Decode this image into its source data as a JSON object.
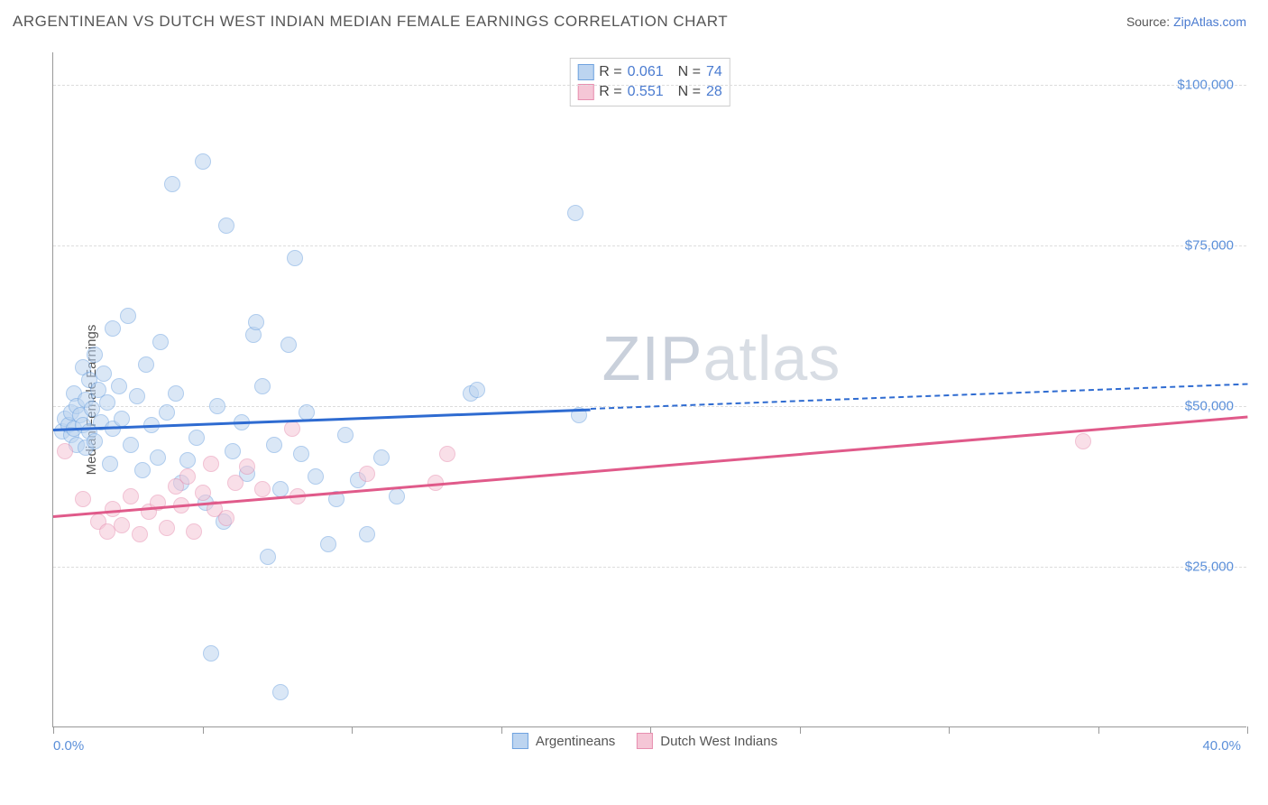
{
  "title": "ARGENTINEAN VS DUTCH WEST INDIAN MEDIAN FEMALE EARNINGS CORRELATION CHART",
  "source_prefix": "Source: ",
  "source_link": "ZipAtlas.com",
  "ylabel": "Median Female Earnings",
  "watermark": {
    "part1": "ZIP",
    "part2": "atlas"
  },
  "chart": {
    "type": "scatter",
    "background_color": "#ffffff",
    "grid_color": "#dddddd",
    "axis_color": "#999999",
    "xlim": [
      0,
      40
    ],
    "ylim": [
      0,
      105000
    ],
    "xticks": [
      0,
      20,
      40
    ],
    "xtick_labels": [
      "0.0%",
      "",
      "40.0%"
    ],
    "xtick_minor": [
      5,
      10,
      15,
      25,
      30,
      35
    ],
    "yticks": [
      25000,
      50000,
      75000,
      100000
    ],
    "ytick_labels": [
      "$25,000",
      "$50,000",
      "$75,000",
      "$100,000"
    ],
    "marker_radius": 9,
    "marker_opacity": 0.55,
    "series": [
      {
        "name": "Argentineans",
        "color_fill": "#bcd4f0",
        "color_stroke": "#6fa3e0",
        "line_color": "#2e6bd1",
        "R": "0.061",
        "N": "74",
        "points": [
          [
            0.3,
            46000
          ],
          [
            0.4,
            48000
          ],
          [
            0.5,
            47000
          ],
          [
            0.6,
            49000
          ],
          [
            0.6,
            45500
          ],
          [
            0.7,
            52000
          ],
          [
            0.7,
            46500
          ],
          [
            0.8,
            50000
          ],
          [
            0.8,
            44000
          ],
          [
            0.9,
            48500
          ],
          [
            1.0,
            56000
          ],
          [
            1.0,
            47000
          ],
          [
            1.1,
            51000
          ],
          [
            1.1,
            43500
          ],
          [
            1.2,
            54000
          ],
          [
            1.2,
            46000
          ],
          [
            1.3,
            49500
          ],
          [
            1.4,
            58000
          ],
          [
            1.4,
            44500
          ],
          [
            1.5,
            52500
          ],
          [
            1.6,
            47500
          ],
          [
            1.7,
            55000
          ],
          [
            1.8,
            50500
          ],
          [
            1.9,
            41000
          ],
          [
            2.0,
            62000
          ],
          [
            2.0,
            46500
          ],
          [
            2.2,
            53000
          ],
          [
            2.3,
            48000
          ],
          [
            2.5,
            64000
          ],
          [
            2.6,
            44000
          ],
          [
            2.8,
            51500
          ],
          [
            3.0,
            40000
          ],
          [
            3.1,
            56500
          ],
          [
            3.3,
            47000
          ],
          [
            3.5,
            42000
          ],
          [
            3.6,
            60000
          ],
          [
            3.8,
            49000
          ],
          [
            4.0,
            84500
          ],
          [
            4.1,
            52000
          ],
          [
            4.3,
            38000
          ],
          [
            4.5,
            41500
          ],
          [
            4.8,
            45000
          ],
          [
            5.0,
            88000
          ],
          [
            5.1,
            35000
          ],
          [
            5.3,
            11500
          ],
          [
            5.5,
            50000
          ],
          [
            5.7,
            32000
          ],
          [
            5.8,
            78000
          ],
          [
            6.0,
            43000
          ],
          [
            6.3,
            47500
          ],
          [
            6.5,
            39500
          ],
          [
            6.7,
            61000
          ],
          [
            6.8,
            63000
          ],
          [
            7.0,
            53000
          ],
          [
            7.2,
            26500
          ],
          [
            7.4,
            44000
          ],
          [
            7.6,
            37000
          ],
          [
            7.6,
            5500
          ],
          [
            7.9,
            59500
          ],
          [
            8.1,
            73000
          ],
          [
            8.3,
            42500
          ],
          [
            8.5,
            49000
          ],
          [
            8.8,
            39000
          ],
          [
            9.2,
            28500
          ],
          [
            9.5,
            35500
          ],
          [
            9.8,
            45500
          ],
          [
            10.2,
            38500
          ],
          [
            10.5,
            30000
          ],
          [
            11.0,
            42000
          ],
          [
            11.5,
            36000
          ],
          [
            14.0,
            52000
          ],
          [
            14.2,
            52500
          ],
          [
            17.5,
            80000
          ],
          [
            17.6,
            48500
          ]
        ],
        "trend": {
          "x0": 0,
          "y0": 46500,
          "x1": 40,
          "y1": 53500,
          "solid_until_x": 18
        }
      },
      {
        "name": "Dutch West Indians",
        "color_fill": "#f5c6d6",
        "color_stroke": "#e78fb0",
        "line_color": "#e05a8a",
        "R": "0.551",
        "N": "28",
        "points": [
          [
            0.4,
            43000
          ],
          [
            1.0,
            35500
          ],
          [
            1.5,
            32000
          ],
          [
            1.8,
            30500
          ],
          [
            2.0,
            34000
          ],
          [
            2.3,
            31500
          ],
          [
            2.6,
            36000
          ],
          [
            2.9,
            30000
          ],
          [
            3.2,
            33500
          ],
          [
            3.5,
            35000
          ],
          [
            3.8,
            31000
          ],
          [
            4.1,
            37500
          ],
          [
            4.3,
            34500
          ],
          [
            4.5,
            39000
          ],
          [
            4.7,
            30500
          ],
          [
            5.0,
            36500
          ],
          [
            5.3,
            41000
          ],
          [
            5.4,
            34000
          ],
          [
            5.8,
            32500
          ],
          [
            6.1,
            38000
          ],
          [
            6.5,
            40500
          ],
          [
            7.0,
            37000
          ],
          [
            8.0,
            46500
          ],
          [
            8.2,
            36000
          ],
          [
            10.5,
            39500
          ],
          [
            12.8,
            38000
          ],
          [
            13.2,
            42500
          ],
          [
            34.5,
            44500
          ]
        ],
        "trend": {
          "x0": 0,
          "y0": 33000,
          "x1": 40,
          "y1": 48500,
          "solid_until_x": 40
        }
      }
    ]
  },
  "legend_top": {
    "r_label": "R =",
    "n_label": "N ="
  },
  "legend_bottom": [
    "Argentineans",
    "Dutch West Indians"
  ]
}
